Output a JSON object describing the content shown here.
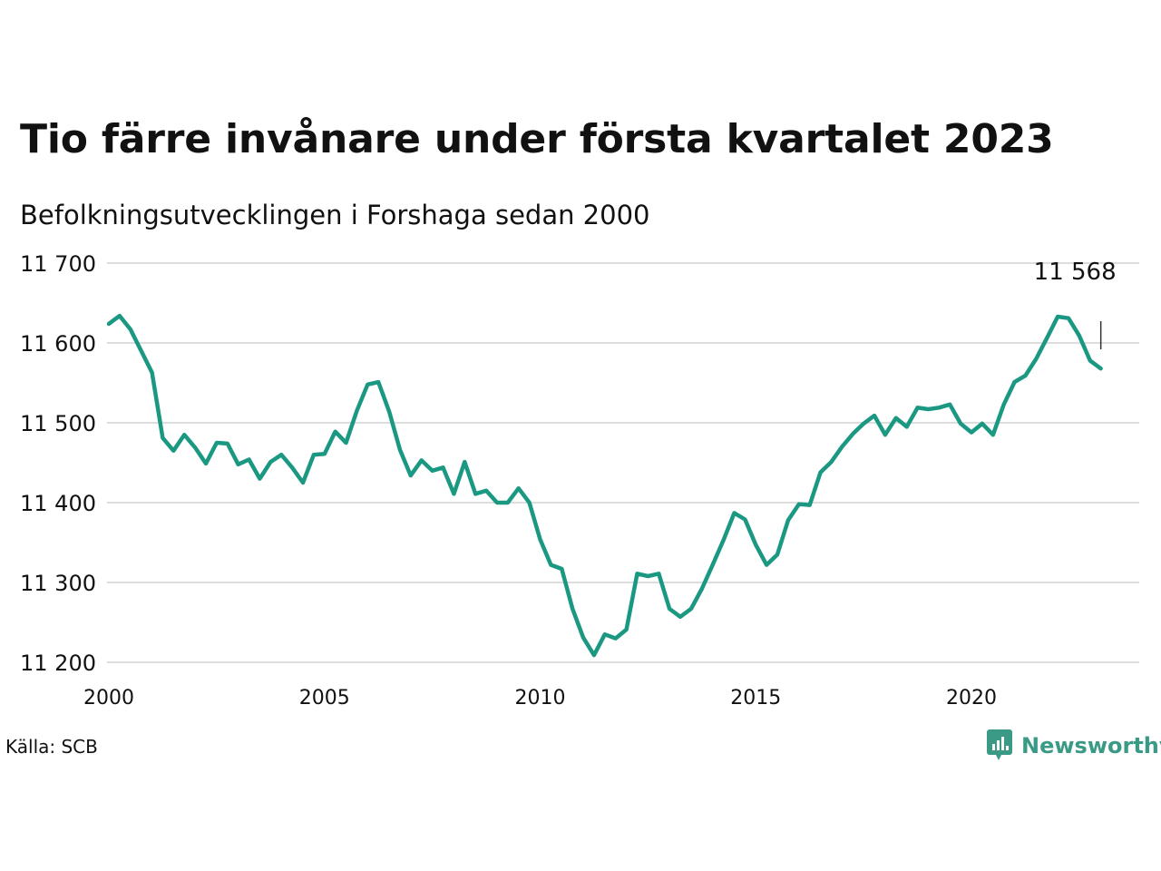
{
  "title": "Tio färre invånare under första kvartalet 2023",
  "subtitle": "Befolkningsutvecklingen i Forshaga sedan 2000",
  "source": "Källa: SCB",
  "brand": {
    "name": "Newsworthy",
    "icon": "newsworthy-logo-icon"
  },
  "colors": {
    "line": "#1a9882",
    "grid": "#dddddd",
    "brand": "#3a9a86"
  },
  "chart_data": {
    "type": "line",
    "x_start": 2000,
    "x_step": 0.25,
    "xlim": [
      2000,
      2024
    ],
    "ylim": [
      11200,
      11700
    ],
    "x_ticks": [
      2000,
      2005,
      2010,
      2015,
      2020
    ],
    "x_tick_labels": [
      "2000",
      "2005",
      "2010",
      "2015",
      "2020"
    ],
    "y_ticks": [
      11200,
      11300,
      11400,
      11500,
      11600,
      11700
    ],
    "y_tick_labels": [
      "11 200",
      "11 300",
      "11 400",
      "11 500",
      "11 600",
      "11 700"
    ],
    "grid": true,
    "end_label": "11 568",
    "series": [
      {
        "values": [
          11624,
          11634,
          11617,
          11590,
          11563,
          11481,
          11465,
          11485,
          11469,
          11449,
          11475,
          11474,
          11448,
          11454,
          11430,
          11451,
          11460,
          11444,
          11425,
          11460,
          11461,
          11489,
          11475,
          11515,
          11548,
          11551,
          11514,
          11466,
          11434,
          11453,
          11440,
          11444,
          11411,
          11451,
          11411,
          11415,
          11400,
          11400,
          11418,
          11400,
          11354,
          11322,
          11317,
          11267,
          11231,
          11209,
          11235,
          11230,
          11241,
          11311,
          11308,
          11311,
          11267,
          11257,
          11267,
          11292,
          11322,
          11353,
          11387,
          11379,
          11347,
          11322,
          11335,
          11378,
          11398,
          11397,
          11438,
          11451,
          11470,
          11486,
          11499,
          11509,
          11485,
          11506,
          11495,
          11519,
          11517,
          11519,
          11523,
          11499,
          11488,
          11499,
          11485,
          11523,
          11551,
          11559,
          11580,
          11606,
          11633,
          11631,
          11609,
          11578,
          11568
        ]
      }
    ]
  }
}
